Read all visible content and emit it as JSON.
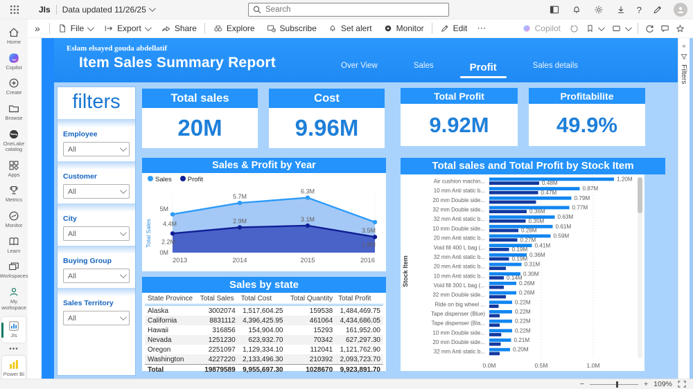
{
  "colors": {
    "accent_blue": "#2493fb",
    "body_bg": "#a9d3fc",
    "kpi_value": "#1e7fd9",
    "sales": "#1186f0",
    "profit": "#13399f",
    "teal_accent": "#117865",
    "powerbi_yellow": "#f2c811"
  },
  "glyphs": {
    "expand": "»",
    "more": "⋯",
    "help": "?",
    "sidebar_more": "•••",
    "zoom_out": "−",
    "zoom_in": "+"
  },
  "top_bar": {
    "workspace": "JIs",
    "data_updated": "Data updated 11/26/25",
    "search_placeholder": "Search"
  },
  "toolbar": {
    "file": "File",
    "export": "Export",
    "share": "Share",
    "explore": "Explore",
    "subscribe": "Subscribe",
    "set_alert": "Set alert",
    "monitor": "Monitor",
    "edit": "Edit",
    "copilot": "Copilot"
  },
  "sidebar": {
    "items": [
      {
        "label": "Home"
      },
      {
        "label": "Copilot"
      },
      {
        "label": "Create"
      },
      {
        "label": "Browse"
      },
      {
        "label": "OneLake catalog"
      },
      {
        "label": "Apps"
      },
      {
        "label": "Metrics"
      },
      {
        "label": "Monitor"
      },
      {
        "label": "Learn"
      },
      {
        "label": "Workspaces"
      },
      {
        "label": "My workspace"
      },
      {
        "label": "JIs"
      },
      {
        "label": "Power BI"
      }
    ]
  },
  "right_rail": {
    "label": "Filters"
  },
  "report": {
    "author": "Eslam elsayed gouda abdellatif",
    "title": "Item Sales Summary Report",
    "tabs": [
      {
        "label": "Over View",
        "active": false
      },
      {
        "label": "Sales",
        "active": false
      },
      {
        "label": "Profit",
        "active": true
      },
      {
        "label": "Sales details",
        "active": false
      }
    ]
  },
  "filters_panel": {
    "title": "filters",
    "groups": [
      {
        "label": "Employee",
        "value": "All"
      },
      {
        "label": "Customer",
        "value": "All"
      },
      {
        "label": "City",
        "value": "All"
      },
      {
        "label": "Buying Group",
        "value": "All"
      },
      {
        "label": "Sales Territory",
        "value": "All"
      }
    ]
  },
  "kpis": [
    {
      "label": "Total sales",
      "value": "20M"
    },
    {
      "label": "Cost",
      "value": "9.96M"
    },
    {
      "label": "Total Profit",
      "value": "9.92M"
    },
    {
      "label": "Profitabilite",
      "value": "49.9%"
    }
  ],
  "chart_data": [
    {
      "type": "area",
      "title": "Sales & Profit by Year",
      "x": [
        "2013",
        "2014",
        "2015",
        "2016"
      ],
      "ylabel": "Total Sales",
      "yticks": [
        "0M",
        "5M"
      ],
      "ylim": [
        0,
        7000000
      ],
      "legend_position": "top-left",
      "grid": "dotted-vertical",
      "series": [
        {
          "name": "Sales",
          "color": "#2e9bf7",
          "fill": "#a5c9f6",
          "values": [
            4400000,
            5700000,
            6300000,
            3500000
          ],
          "labels": [
            "4.4M",
            "5.7M",
            "6.3M",
            "3.5M"
          ]
        },
        {
          "name": "Profit",
          "color": "#101f96",
          "fill": "#4a63c9",
          "values": [
            2200000,
            2900000,
            3100000,
            1800000
          ],
          "labels": [
            "2.2M",
            "2.9M",
            "3.1M",
            "1.8M"
          ]
        }
      ]
    },
    {
      "type": "bar",
      "orientation": "horizontal",
      "title": "Total sales and Total Profit by Stock Item",
      "ylabel": "Stock Item",
      "xticks": [
        "0.0M",
        "0.5M",
        "1.0M"
      ],
      "xlim": [
        0,
        1400000
      ],
      "categories": [
        "Air cushion machin...",
        "10 mm Anti static b...",
        "20 mm Double side...",
        "32 mm Double side...",
        "32 mm Anti static b...",
        "10 mm Double side...",
        "20 mm Anti static b...",
        "Void fill 400 L bag (...",
        "32 mm Anti static b...",
        "20 mm Anti static b...",
        "10 mm Anti static b...",
        "Void fill 300 L bag (...",
        "32 mm Double side...",
        "Ride on big wheel ...",
        "Tape dispenser (Blue)",
        "Tape dispenser (Bla...",
        "10 mm Double side...",
        "20 mm Double side...",
        "32 mm Anti static b..."
      ],
      "series": [
        {
          "name": "Total sales",
          "color": "#1186f0",
          "values": [
            1200000,
            870000,
            790000,
            770000,
            630000,
            610000,
            590000,
            410000,
            360000,
            310000,
            300000,
            260000,
            260000,
            220000,
            220000,
            220000,
            220000,
            210000,
            200000
          ],
          "labels": [
            "1.20M",
            "0.87M",
            "0.79M",
            "0.77M",
            "0.63M",
            "0.61M",
            "0.59M",
            "0.41M",
            "0.36M",
            "0.31M",
            "0.30M",
            "0.26M",
            "0.26M",
            "0.22M",
            "0.22M",
            "0.22M",
            "0.22M",
            "0.21M",
            "0.20M"
          ]
        },
        {
          "name": "Total Profit",
          "color": "#13399f",
          "values": [
            480000,
            470000,
            450000,
            360000,
            350000,
            280000,
            270000,
            190000,
            190000,
            160000,
            140000,
            140000,
            160000,
            90000,
            100000,
            100000,
            115000,
            110000,
            100000
          ],
          "labels": [
            "0.48M",
            "0.47M",
            "",
            "0.36M",
            "0.35M",
            "0.28M",
            "0.27M",
            "0.19M",
            "0.19M",
            "",
            "0.14M",
            "",
            "",
            "",
            "",
            "",
            "",
            "",
            ""
          ]
        }
      ]
    },
    {
      "type": "table",
      "title": "Sales by state",
      "columns": [
        "State Province",
        "Total Sales",
        "Total Cost",
        "Total Quantity",
        "Total Profit"
      ],
      "rows": [
        [
          "Alaska",
          "3002074",
          "1,517,604.25",
          "159538",
          "1,484,469.75"
        ],
        [
          "California",
          "8831112",
          "4,396,425.95",
          "461064",
          "4,434,686.05"
        ],
        [
          "Hawaii",
          "316856",
          "154,904.00",
          "15293",
          "161,952.00"
        ],
        [
          "Nevada",
          "1251230",
          "623,932.70",
          "70342",
          "627,297.30"
        ],
        [
          "Oregon",
          "2251097",
          "1,129,334.10",
          "112041",
          "1,121,762.90"
        ],
        [
          "Washington",
          "4227220",
          "2,133,496.30",
          "210392",
          "2,093,723.70"
        ]
      ],
      "total_row": [
        "Total",
        "19879589",
        "9,955,697.30",
        "1028670",
        "9,923,891.70"
      ]
    }
  ],
  "status_bar": {
    "zoom": "109%"
  }
}
